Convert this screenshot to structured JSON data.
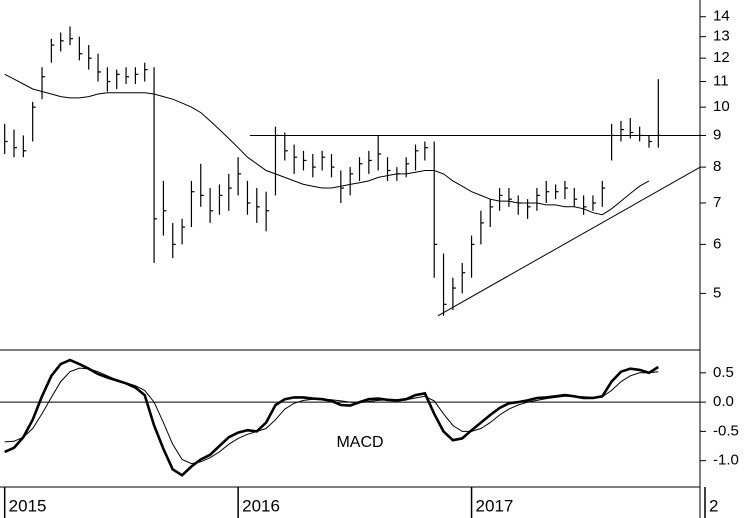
{
  "chart_data": [
    {
      "type": "ohlc",
      "log": true,
      "xlim": [
        2014.98,
        2018.0
      ],
      "ylim": [
        4.05,
        14.9
      ],
      "yticks": [
        5,
        6,
        7,
        8,
        9,
        10,
        11,
        12,
        13,
        14
      ],
      "color": "#000000",
      "x": [
        2015.0,
        2015.04,
        2015.08,
        2015.12,
        2015.16,
        2015.2,
        2015.24,
        2015.28,
        2015.32,
        2015.36,
        2015.4,
        2015.44,
        2015.48,
        2015.52,
        2015.56,
        2015.6,
        2015.64,
        2015.68,
        2015.72,
        2015.76,
        2015.8,
        2015.84,
        2015.88,
        2015.92,
        2015.96,
        2016.0,
        2016.04,
        2016.08,
        2016.12,
        2016.16,
        2016.2,
        2016.24,
        2016.28,
        2016.32,
        2016.36,
        2016.4,
        2016.44,
        2016.48,
        2016.52,
        2016.56,
        2016.6,
        2016.64,
        2016.68,
        2016.72,
        2016.76,
        2016.8,
        2016.84,
        2016.88,
        2016.92,
        2016.96,
        2017.0,
        2017.04,
        2017.08,
        2017.12,
        2017.16,
        2017.2,
        2017.24,
        2017.28,
        2017.32,
        2017.36,
        2017.4,
        2017.44,
        2017.48,
        2017.52,
        2017.56,
        2017.6,
        2017.64,
        2017.68,
        2017.72,
        2017.76,
        2017.8
      ],
      "high": [
        9.4,
        9.2,
        9.0,
        10.2,
        11.6,
        12.9,
        13.2,
        13.5,
        13.0,
        12.6,
        12.2,
        11.6,
        11.5,
        11.6,
        11.6,
        11.8,
        11.6,
        7.6,
        6.5,
        6.6,
        7.6,
        8.1,
        7.4,
        7.5,
        7.8,
        8.3,
        7.6,
        7.4,
        7.3,
        9.3,
        9.1,
        8.7,
        8.5,
        8.4,
        8.5,
        8.4,
        7.9,
        8.0,
        8.3,
        8.5,
        9.0,
        8.3,
        8.0,
        8.3,
        8.7,
        8.8,
        8.8,
        5.8,
        5.3,
        5.6,
        6.2,
        6.8,
        7.1,
        7.4,
        7.4,
        7.2,
        7.1,
        7.4,
        7.6,
        7.5,
        7.6,
        7.4,
        7.2,
        7.2,
        7.6,
        9.4,
        9.5,
        9.6,
        9.3,
        9.0,
        11.1
      ],
      "low": [
        8.4,
        8.3,
        8.3,
        8.8,
        10.3,
        11.8,
        12.3,
        12.6,
        11.9,
        11.5,
        11.0,
        10.6,
        10.7,
        10.9,
        10.9,
        11.0,
        5.6,
        6.2,
        5.7,
        6.0,
        6.4,
        6.9,
        6.5,
        6.7,
        6.8,
        7.2,
        6.7,
        6.5,
        6.3,
        7.2,
        8.2,
        7.8,
        7.9,
        7.7,
        7.9,
        7.7,
        7.0,
        7.2,
        7.6,
        7.8,
        7.9,
        7.6,
        7.6,
        7.7,
        7.9,
        8.2,
        5.3,
        4.6,
        4.7,
        5.0,
        5.3,
        6.0,
        6.4,
        6.8,
        6.9,
        6.7,
        6.6,
        6.8,
        7.0,
        7.1,
        7.1,
        6.9,
        6.7,
        6.8,
        6.9,
        8.2,
        8.8,
        8.9,
        8.8,
        8.6,
        8.6
      ],
      "close": [
        8.8,
        8.6,
        8.5,
        10.0,
        11.2,
        12.6,
        12.8,
        12.9,
        12.2,
        12.0,
        11.4,
        11.0,
        11.3,
        11.2,
        11.3,
        11.5,
        6.6,
        6.8,
        6.0,
        6.4,
        7.3,
        7.2,
        6.8,
        7.2,
        7.4,
        7.8,
        7.0,
        6.9,
        6.8,
        9.0,
        8.5,
        8.3,
        8.2,
        8.0,
        8.3,
        8.0,
        7.4,
        7.8,
        8.1,
        8.2,
        8.4,
        7.9,
        7.8,
        8.1,
        8.5,
        8.6,
        6.0,
        4.8,
        5.1,
        5.4,
        6.0,
        6.5,
        6.9,
        7.2,
        7.1,
        7.0,
        6.9,
        7.2,
        7.3,
        7.3,
        7.4,
        7.1,
        6.9,
        7.0,
        7.4,
        9.0,
        9.2,
        9.1,
        9.0,
        8.8,
        9.0
      ],
      "series": [
        {
          "color": "#000000",
          "values": [
            11.3,
            11.1,
            10.9,
            10.7,
            10.6,
            10.5,
            10.4,
            10.35,
            10.35,
            10.4,
            10.5,
            10.55,
            10.55,
            10.55,
            10.55,
            10.55,
            10.5,
            10.4,
            10.3,
            10.15,
            10.0,
            9.8,
            9.5,
            9.2,
            8.9,
            8.6,
            8.3,
            8.1,
            7.9,
            7.8,
            7.7,
            7.6,
            7.5,
            7.45,
            7.4,
            7.4,
            7.45,
            7.5,
            7.55,
            7.6,
            7.7,
            7.75,
            7.8,
            7.8,
            7.85,
            7.9,
            7.9,
            7.8,
            7.6,
            7.45,
            7.3,
            7.2,
            7.1,
            7.05,
            7.05,
            7.0,
            7.0,
            7.0,
            6.95,
            6.95,
            6.9,
            6.9,
            6.85,
            6.75,
            6.7,
            6.85,
            7.05,
            7.25,
            7.45,
            7.6,
            null
          ]
        }
      ],
      "lines": [
        {
          "x": [
            2016.05,
            2017.98
          ],
          "values": [
            9,
            9
          ]
        },
        {
          "x": [
            2016.856,
            2017.98
          ],
          "values": [
            4.6,
            8.0
          ]
        }
      ]
    },
    {
      "type": "line",
      "annotation": "MACD",
      "xlim": [
        2014.98,
        2018.0
      ],
      "ylim": [
        -1.45,
        0.89
      ],
      "xticks": [
        2015,
        2016,
        2017,
        {
          "value": 2018,
          "label": "2"
        }
      ],
      "yticks": [
        0.5,
        {
          "value": 0,
          "label": "0.0"
        },
        -0.5,
        {
          "value": -1,
          "label": "-1.0"
        }
      ],
      "series": [
        {
          "color": "#000000",
          "values": [
            -0.85,
            -0.78,
            -0.6,
            -0.3,
            0.1,
            0.45,
            0.65,
            0.72,
            0.65,
            0.57,
            0.48,
            0.42,
            0.37,
            0.32,
            0.25,
            0.12,
            -0.4,
            -0.8,
            -1.15,
            -1.25,
            -1.1,
            -0.98,
            -0.9,
            -0.75,
            -0.6,
            -0.52,
            -0.48,
            -0.5,
            -0.35,
            -0.05,
            0.05,
            0.08,
            0.08,
            0.06,
            0.05,
            0.02,
            -0.05,
            -0.06,
            0.0,
            0.05,
            0.06,
            0.04,
            0.03,
            0.05,
            0.12,
            0.15,
            -0.2,
            -0.5,
            -0.65,
            -0.62,
            -0.48,
            -0.35,
            -0.22,
            -0.1,
            -0.02,
            0.0,
            0.03,
            0.07,
            0.08,
            0.1,
            0.12,
            0.1,
            0.07,
            0.07,
            0.1,
            0.35,
            0.52,
            0.57,
            0.55,
            0.5,
            0.6
          ]
        },
        {
          "color": "#000000",
          "values": [
            -0.68,
            -0.67,
            -0.6,
            -0.45,
            -0.2,
            0.08,
            0.35,
            0.52,
            0.58,
            0.57,
            0.52,
            0.45,
            0.38,
            0.33,
            0.28,
            0.2,
            0.0,
            -0.35,
            -0.72,
            -0.98,
            -1.05,
            -1.02,
            -0.95,
            -0.85,
            -0.72,
            -0.62,
            -0.55,
            -0.5,
            -0.45,
            -0.3,
            -0.12,
            -0.02,
            0.03,
            0.05,
            0.05,
            0.04,
            0.02,
            0.0,
            -0.01,
            0.01,
            0.03,
            0.04,
            0.04,
            0.04,
            0.07,
            0.1,
            0.02,
            -0.2,
            -0.4,
            -0.5,
            -0.5,
            -0.45,
            -0.35,
            -0.22,
            -0.12,
            -0.05,
            0.0,
            0.03,
            0.06,
            0.08,
            0.1,
            0.1,
            0.09,
            0.08,
            0.09,
            0.2,
            0.35,
            0.45,
            0.5,
            0.5,
            0.52
          ]
        }
      ]
    }
  ]
}
